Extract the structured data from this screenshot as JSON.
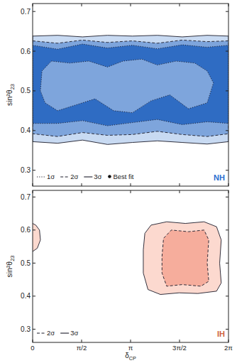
{
  "chart_data": [
    {
      "type": "contour",
      "ylabel": "sin²θ23",
      "xlim": [
        0,
        6.2832
      ],
      "ylim": [
        0.26,
        0.72
      ],
      "xticks": [
        0,
        {
          "value": 1.5708,
          "label": "π/2"
        },
        {
          "value": 3.1416,
          "label": "π"
        },
        {
          "value": 4.7124,
          "label": "3π/2"
        },
        {
          "value": 6.2832,
          "label": "2π"
        }
      ],
      "yticks": [
        0.3,
        0.4,
        0.5,
        0.6,
        0.7
      ],
      "tick_labels": "y",
      "legend": "lower left",
      "annotations": [
        {
          "text": "NH",
          "color": "#2c6ccf"
        }
      ],
      "series": [
        {
          "name": "1σ",
          "color": "#2f6cc3",
          "line_style": "dotted",
          "regions": [
            {
              "x": [
                0,
                0.8,
                1.6,
                2.4,
                3.2,
                4.0,
                4.8,
                5.6,
                6.2832,
                6.2832,
                5.6,
                4.8,
                4.0,
                3.2,
                2.4,
                1.6,
                0.8,
                0
              ],
              "y": [
                0.615,
                0.605,
                0.618,
                0.608,
                0.615,
                0.606,
                0.616,
                0.61,
                0.615,
                0.418,
                0.422,
                0.415,
                0.428,
                0.42,
                0.412,
                0.425,
                0.418,
                0.418
              ]
            },
            {
              "x": [
                0.3,
                0.6,
                1.2,
                1.8,
                2.4,
                2.9,
                3.5,
                4.0,
                4.6,
                5.2,
                5.6,
                5.8,
                5.6,
                5.0,
                4.4,
                3.8,
                3.2,
                2.6,
                2.0,
                1.4,
                0.8,
                0.4,
                0.25
              ],
              "y": [
                0.55,
                0.575,
                0.57,
                0.575,
                0.56,
                0.575,
                0.58,
                0.565,
                0.575,
                0.57,
                0.55,
                0.52,
                0.47,
                0.455,
                0.49,
                0.475,
                0.445,
                0.45,
                0.48,
                0.465,
                0.45,
                0.47,
                0.5
              ]
            }
          ]
        },
        {
          "name": "2σ",
          "color": "#7ea5dc",
          "line_style": "dashed",
          "regions": [
            {
              "x": [
                0,
                0.8,
                1.6,
                2.4,
                3.2,
                4.0,
                4.8,
                5.6,
                6.2832,
                6.2832,
                5.6,
                4.8,
                4.0,
                3.2,
                2.4,
                1.6,
                0.8,
                0
              ],
              "y": [
                0.626,
                0.62,
                0.628,
                0.622,
                0.626,
                0.62,
                0.628,
                0.624,
                0.626,
                0.392,
                0.385,
                0.39,
                0.398,
                0.39,
                0.388,
                0.395,
                0.385,
                0.392
              ]
            }
          ]
        },
        {
          "name": "3σ",
          "color": "#c8daf2",
          "line_style": "solid",
          "regions": [
            {
              "x": [
                0,
                0.8,
                1.6,
                2.4,
                3.2,
                4.0,
                4.8,
                5.6,
                6.2832,
                6.2832,
                5.6,
                4.8,
                4.0,
                3.2,
                2.4,
                1.6,
                0.8,
                0
              ],
              "y": [
                0.638,
                0.64,
                0.636,
                0.64,
                0.638,
                0.64,
                0.636,
                0.64,
                0.638,
                0.372,
                0.366,
                0.37,
                0.374,
                0.37,
                0.365,
                0.376,
                0.368,
                0.372
              ]
            }
          ]
        },
        {
          "name": "Best fit",
          "marker": "dot",
          "x": [],
          "values": []
        }
      ]
    },
    {
      "type": "contour",
      "xlabel": "δCP",
      "ylabel": "sin²θ23",
      "xlim": [
        0,
        6.2832
      ],
      "ylim": [
        0.26,
        0.72
      ],
      "xticks": [
        0,
        {
          "value": 1.5708,
          "label": "π/2"
        },
        {
          "value": 3.1416,
          "label": "π"
        },
        {
          "value": 4.7124,
          "label": "3π/2"
        },
        {
          "value": 6.2832,
          "label": "2π"
        }
      ],
      "yticks": [
        0.3,
        0.4,
        0.5,
        0.6,
        0.7
      ],
      "legend": "lower left",
      "annotations": [
        {
          "text": "IH",
          "color": "#d0603f"
        }
      ],
      "series": [
        {
          "name": "2σ",
          "color": "#f6ad9c",
          "line_style": "dashed",
          "regions": [
            {
              "x": [
                4.15,
                4.2,
                4.45,
                5.0,
                5.5,
                5.65,
                5.6,
                5.65,
                5.4,
                4.8,
                4.3,
                4.15
              ],
              "y": [
                0.52,
                0.575,
                0.6,
                0.595,
                0.6,
                0.57,
                0.5,
                0.445,
                0.43,
                0.435,
                0.43,
                0.47
              ]
            }
          ]
        },
        {
          "name": "3σ",
          "color": "#fcd9cf",
          "line_style": "solid",
          "regions": [
            {
              "x": [
                3.55,
                3.6,
                3.8,
                4.3,
                4.9,
                5.5,
                5.9,
                6.05,
                6.0,
                6.05,
                5.9,
                5.3,
                4.7,
                4.1,
                3.7,
                3.55
              ],
              "y": [
                0.54,
                0.59,
                0.615,
                0.625,
                0.62,
                0.625,
                0.61,
                0.57,
                0.5,
                0.44,
                0.415,
                0.408,
                0.41,
                0.405,
                0.42,
                0.47
              ]
            },
            {
              "x": [
                -0.1,
                0.0,
                0.15,
                0.25,
                0.22,
                0.1,
                0.0,
                -0.1
              ],
              "y": [
                0.53,
                0.535,
                0.545,
                0.57,
                0.6,
                0.615,
                0.62,
                0.62
              ]
            }
          ]
        }
      ]
    }
  ]
}
